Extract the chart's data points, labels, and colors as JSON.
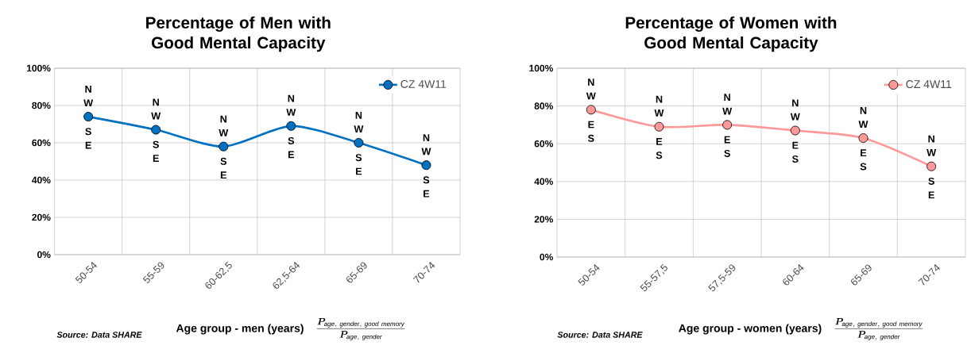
{
  "chart_data": [
    {
      "type": "line",
      "title": "Percentage of Men with Good Mental Capacity",
      "xlabel": "Age group  - men (years)",
      "categories": [
        "50-54",
        "55-59",
        "60-62,5",
        "62,5-64",
        "65-69",
        "70-74"
      ],
      "series": [
        {
          "name": "CZ 4W11",
          "color": "#0070c0",
          "values": [
            74,
            67,
            58,
            69,
            60,
            48
          ]
        }
      ],
      "ylim": [
        0,
        100
      ],
      "yticks": [
        {
          "value": 0,
          "label": "0%"
        },
        {
          "value": 20,
          "label": "20%"
        },
        {
          "value": 40,
          "label": "40%"
        },
        {
          "value": 60,
          "label": "60%"
        },
        {
          "value": 80,
          "label": "80%"
        },
        {
          "value": 100,
          "label": "100%"
        }
      ],
      "grid": true,
      "legend": "top right",
      "marker": "circle",
      "annotations": [
        "Source: Data SHARE",
        "\\frac{\\boldsymbol{P}_{\\mathbf{\\mathit{age,\\ gender,\\ good\\ memory}}}}{\\boldsymbol{P}_{\\mathbf{\\mathit{age,\\ gender}}}}",
        "N",
        "W",
        "S",
        "E",
        "N",
        "W",
        "S",
        "E",
        "N",
        "W",
        "S",
        "E",
        "N",
        "W",
        "S",
        "E",
        "N",
        "W",
        "S",
        "E",
        "N",
        "W",
        "S",
        "E"
      ]
    },
    {
      "type": "line",
      "title": "Percentage of Women with Good Mental Capacity",
      "xlabel": "Age group  - women (years)",
      "categories": [
        "50-54",
        "55-57,5",
        "57,5-59",
        "60-64",
        "65-69",
        "70-74"
      ],
      "series": [
        {
          "name": "CZ 4W11",
          "color": "#ff9999",
          "values": [
            78,
            69,
            70,
            67,
            63,
            48
          ]
        }
      ],
      "ylim": [
        0,
        100
      ],
      "yticks": [
        {
          "value": 0,
          "label": "0%"
        },
        {
          "value": 20,
          "label": "20%"
        },
        {
          "value": 40,
          "label": "40%"
        },
        {
          "value": 60,
          "label": "60%"
        },
        {
          "value": 80,
          "label": "80%"
        },
        {
          "value": 100,
          "label": "100%"
        }
      ],
      "grid": true,
      "legend": "top right",
      "marker": "circle",
      "annotations": [
        "Source: Data SHARE",
        "\\frac{\\boldsymbol{P}_{\\mathbf{\\mathit{age,\\ gender,\\ good\\ memory}}}}{\\boldsymbol{P}_{\\mathbf{\\mathit{age,\\ gender}}}}",
        "N",
        "W",
        "E",
        "S",
        "N",
        "W",
        "E",
        "S",
        "N",
        "W",
        "E",
        "S",
        "N",
        "W",
        "E",
        "S",
        "N",
        "W",
        "E",
        "S",
        "N",
        "W",
        "S",
        "E"
      ]
    }
  ]
}
